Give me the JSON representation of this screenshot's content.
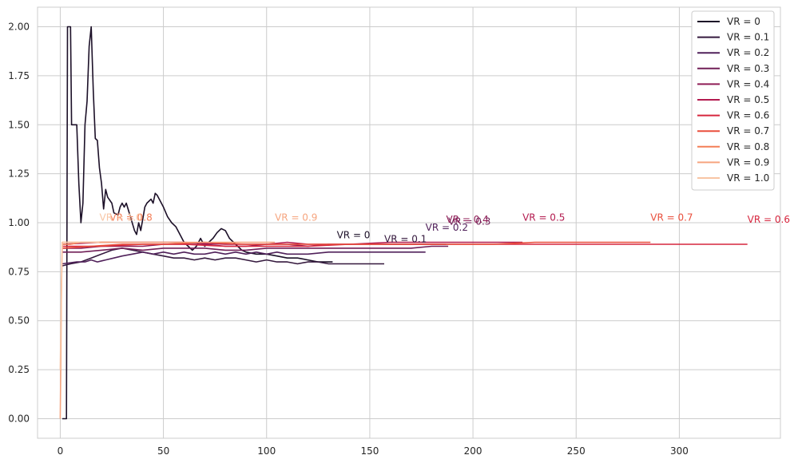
{
  "chart_data": {
    "type": "line",
    "title": "",
    "xlabel": "",
    "ylabel": "",
    "xlim": [
      -11,
      349
    ],
    "ylim": [
      -0.1,
      2.1
    ],
    "grid": true,
    "legend_position": "top-right",
    "x_ticks": [
      0,
      50,
      100,
      150,
      200,
      250,
      300
    ],
    "x_tick_labels": [
      "0",
      "50",
      "100",
      "150",
      "200",
      "250",
      "300"
    ],
    "y_ticks": [
      0.0,
      0.25,
      0.5,
      0.75,
      1.0,
      1.25,
      1.5,
      1.75,
      2.0
    ],
    "y_tick_labels": [
      "0.00",
      "0.25",
      "0.50",
      "0.75",
      "1.00",
      "1.25",
      "1.50",
      "1.75",
      "2.00"
    ],
    "series": [
      {
        "name": "VR = 0",
        "color": "#1c1028",
        "end_label": "VR = 0",
        "end_label_pos": [
          134,
          0.92
        ],
        "points": [
          [
            1,
            0
          ],
          [
            3,
            0
          ],
          [
            3.5,
            2
          ],
          [
            5,
            2
          ],
          [
            5.5,
            1.5
          ],
          [
            8,
            1.5
          ],
          [
            9,
            1.2
          ],
          [
            10,
            1.0
          ],
          [
            11,
            1.1
          ],
          [
            12,
            1.5
          ],
          [
            13,
            1.62
          ],
          [
            14,
            1.9
          ],
          [
            15,
            2.0
          ],
          [
            16,
            1.67
          ],
          [
            17,
            1.43
          ],
          [
            18,
            1.42
          ],
          [
            19,
            1.28
          ],
          [
            20,
            1.2
          ],
          [
            21,
            1.07
          ],
          [
            22,
            1.17
          ],
          [
            23,
            1.13
          ],
          [
            25,
            1.1
          ],
          [
            26,
            1.05
          ],
          [
            28,
            1.04
          ],
          [
            29,
            1.08
          ],
          [
            30,
            1.1
          ],
          [
            31,
            1.08
          ],
          [
            32,
            1.1
          ],
          [
            34,
            1.03
          ],
          [
            36,
            0.96
          ],
          [
            37,
            0.94
          ],
          [
            38,
            1.0
          ],
          [
            39,
            0.96
          ],
          [
            40,
            1.02
          ],
          [
            41,
            1.08
          ],
          [
            42,
            1.1
          ],
          [
            44,
            1.12
          ],
          [
            45,
            1.1
          ],
          [
            46,
            1.15
          ],
          [
            47,
            1.14
          ],
          [
            48,
            1.12
          ],
          [
            50,
            1.08
          ],
          [
            52,
            1.03
          ],
          [
            54,
            1.0
          ],
          [
            56,
            0.98
          ],
          [
            58,
            0.94
          ],
          [
            60,
            0.9
          ],
          [
            62,
            0.88
          ],
          [
            64,
            0.86
          ],
          [
            66,
            0.88
          ],
          [
            68,
            0.92
          ],
          [
            70,
            0.88
          ],
          [
            72,
            0.9
          ],
          [
            74,
            0.92
          ],
          [
            76,
            0.95
          ],
          [
            78,
            0.97
          ],
          [
            80,
            0.96
          ],
          [
            82,
            0.92
          ],
          [
            84,
            0.9
          ],
          [
            86,
            0.88
          ],
          [
            88,
            0.86
          ],
          [
            90,
            0.85
          ],
          [
            95,
            0.84
          ],
          [
            100,
            0.84
          ],
          [
            105,
            0.83
          ],
          [
            110,
            0.82
          ],
          [
            115,
            0.82
          ],
          [
            120,
            0.81
          ],
          [
            125,
            0.8
          ],
          [
            132,
            0.8
          ]
        ]
      },
      {
        "name": "VR = 0.1",
        "color": "#35193e",
        "end_label": "VR = 0.1",
        "end_label_pos": [
          157,
          0.9
        ],
        "points": [
          [
            1,
            0.78
          ],
          [
            5,
            0.79
          ],
          [
            10,
            0.8
          ],
          [
            15,
            0.82
          ],
          [
            20,
            0.84
          ],
          [
            25,
            0.86
          ],
          [
            30,
            0.87
          ],
          [
            35,
            0.86
          ],
          [
            40,
            0.85
          ],
          [
            45,
            0.84
          ],
          [
            50,
            0.83
          ],
          [
            55,
            0.82
          ],
          [
            60,
            0.82
          ],
          [
            65,
            0.81
          ],
          [
            70,
            0.82
          ],
          [
            75,
            0.81
          ],
          [
            80,
            0.82
          ],
          [
            85,
            0.82
          ],
          [
            90,
            0.81
          ],
          [
            95,
            0.8
          ],
          [
            100,
            0.81
          ],
          [
            105,
            0.8
          ],
          [
            110,
            0.8
          ],
          [
            115,
            0.79
          ],
          [
            120,
            0.8
          ],
          [
            125,
            0.8
          ],
          [
            130,
            0.79
          ],
          [
            140,
            0.79
          ],
          [
            150,
            0.79
          ],
          [
            157,
            0.79
          ]
        ]
      },
      {
        "name": "VR = 0.2",
        "color": "#50215a",
        "end_label": "VR = 0.2",
        "end_label_pos": [
          177,
          0.96
        ],
        "points": [
          [
            1,
            0.79
          ],
          [
            8,
            0.8
          ],
          [
            12,
            0.8
          ],
          [
            15,
            0.81
          ],
          [
            18,
            0.8
          ],
          [
            22,
            0.81
          ],
          [
            26,
            0.82
          ],
          [
            30,
            0.83
          ],
          [
            35,
            0.84
          ],
          [
            40,
            0.85
          ],
          [
            45,
            0.84
          ],
          [
            50,
            0.85
          ],
          [
            55,
            0.84
          ],
          [
            60,
            0.85
          ],
          [
            65,
            0.84
          ],
          [
            70,
            0.84
          ],
          [
            75,
            0.85
          ],
          [
            80,
            0.84
          ],
          [
            85,
            0.85
          ],
          [
            90,
            0.84
          ],
          [
            95,
            0.85
          ],
          [
            100,
            0.84
          ],
          [
            105,
            0.85
          ],
          [
            110,
            0.84
          ],
          [
            115,
            0.84
          ],
          [
            120,
            0.84
          ],
          [
            130,
            0.85
          ],
          [
            140,
            0.85
          ],
          [
            150,
            0.85
          ],
          [
            160,
            0.85
          ],
          [
            170,
            0.85
          ],
          [
            177,
            0.85
          ]
        ]
      },
      {
        "name": "VR = 0.3",
        "color": "#701f57",
        "end_label": "VR = 0.3",
        "end_label_pos": [
          188,
          0.99
        ],
        "points": [
          [
            1,
            0.85
          ],
          [
            10,
            0.85
          ],
          [
            20,
            0.86
          ],
          [
            30,
            0.87
          ],
          [
            40,
            0.86
          ],
          [
            50,
            0.87
          ],
          [
            60,
            0.87
          ],
          [
            70,
            0.87
          ],
          [
            80,
            0.86
          ],
          [
            90,
            0.86
          ],
          [
            100,
            0.87
          ],
          [
            110,
            0.87
          ],
          [
            120,
            0.87
          ],
          [
            130,
            0.87
          ],
          [
            140,
            0.87
          ],
          [
            150,
            0.87
          ],
          [
            160,
            0.87
          ],
          [
            170,
            0.87
          ],
          [
            180,
            0.88
          ],
          [
            188,
            0.88
          ]
        ]
      },
      {
        "name": "VR = 0.4",
        "color": "#8f1d56",
        "end_label": "VR = 0.4",
        "end_label_pos": [
          187,
          1.0
        ],
        "points": [
          [
            1,
            0.87
          ],
          [
            10,
            0.87
          ],
          [
            20,
            0.88
          ],
          [
            30,
            0.88
          ],
          [
            40,
            0.88
          ],
          [
            50,
            0.89
          ],
          [
            60,
            0.89
          ],
          [
            70,
            0.89
          ],
          [
            80,
            0.88
          ],
          [
            90,
            0.88
          ],
          [
            100,
            0.89
          ],
          [
            110,
            0.89
          ],
          [
            120,
            0.88
          ],
          [
            130,
            0.89
          ],
          [
            140,
            0.89
          ],
          [
            150,
            0.89
          ],
          [
            160,
            0.89
          ],
          [
            170,
            0.89
          ],
          [
            180,
            0.89
          ],
          [
            187,
            0.89
          ]
        ]
      },
      {
        "name": "VR = 0.5",
        "color": "#b31b4f",
        "end_label": "VR = 0.5",
        "end_label_pos": [
          224,
          1.01
        ],
        "points": [
          [
            1,
            0.89
          ],
          [
            20,
            0.9
          ],
          [
            40,
            0.9
          ],
          [
            60,
            0.9
          ],
          [
            80,
            0.89
          ],
          [
            100,
            0.89
          ],
          [
            110,
            0.9
          ],
          [
            120,
            0.89
          ],
          [
            140,
            0.89
          ],
          [
            160,
            0.9
          ],
          [
            180,
            0.9
          ],
          [
            200,
            0.9
          ],
          [
            210,
            0.9
          ],
          [
            224,
            0.9
          ]
        ]
      },
      {
        "name": "VR = 0.6",
        "color": "#d6263e",
        "end_label": "VR = 0.6",
        "end_label_pos": [
          333,
          1.0
        ],
        "points": [
          [
            1,
            0.88
          ],
          [
            20,
            0.88
          ],
          [
            40,
            0.89
          ],
          [
            60,
            0.89
          ],
          [
            80,
            0.88
          ],
          [
            100,
            0.88
          ],
          [
            120,
            0.88
          ],
          [
            140,
            0.89
          ],
          [
            160,
            0.89
          ],
          [
            180,
            0.89
          ],
          [
            200,
            0.89
          ],
          [
            220,
            0.89
          ],
          [
            250,
            0.89
          ],
          [
            280,
            0.89
          ],
          [
            310,
            0.89
          ],
          [
            333,
            0.89
          ]
        ]
      },
      {
        "name": "VR = 0.7",
        "color": "#e94f3c",
        "end_label": "VR = 0.7",
        "end_label_pos": [
          286,
          1.01
        ],
        "points": [
          [
            1,
            0.87
          ],
          [
            15,
            0.88
          ],
          [
            30,
            0.89
          ],
          [
            50,
            0.89
          ],
          [
            70,
            0.9
          ],
          [
            90,
            0.89
          ],
          [
            110,
            0.89
          ],
          [
            130,
            0.89
          ],
          [
            150,
            0.89
          ],
          [
            170,
            0.89
          ],
          [
            190,
            0.89
          ],
          [
            210,
            0.89
          ],
          [
            230,
            0.9
          ],
          [
            250,
            0.9
          ],
          [
            270,
            0.9
          ],
          [
            286,
            0.9
          ]
        ]
      },
      {
        "name": "VR = 0.8",
        "color": "#f47e57",
        "end_label": "VR = 0.8",
        "end_label_pos": [
          24,
          1.01
        ],
        "points": [
          [
            1,
            0.89
          ],
          [
            5,
            0.89
          ],
          [
            10,
            0.9
          ],
          [
            15,
            0.9
          ],
          [
            20,
            0.9
          ],
          [
            24,
            0.9
          ]
        ]
      },
      {
        "name": "VR = 0.9",
        "color": "#f6a57f",
        "end_label": "VR = 0.9",
        "end_label_pos": [
          104,
          1.01
        ],
        "points": [
          [
            0,
            0
          ],
          [
            0.3,
            0.3
          ],
          [
            0.6,
            0.7
          ],
          [
            1,
            0.9
          ],
          [
            10,
            0.9
          ],
          [
            20,
            0.9
          ],
          [
            30,
            0.9
          ],
          [
            40,
            0.9
          ],
          [
            50,
            0.9
          ],
          [
            60,
            0.9
          ],
          [
            70,
            0.9
          ],
          [
            80,
            0.9
          ],
          [
            90,
            0.9
          ],
          [
            104,
            0.9
          ]
        ]
      },
      {
        "name": "VR = 1.0",
        "color": "#f8c5a4",
        "end_label": "VR = 1.0",
        "end_label_pos": [
          19,
          1.01
        ],
        "points": [
          [
            0,
            0.25
          ],
          [
            0.5,
            0.6
          ],
          [
            1,
            0.9
          ],
          [
            5,
            0.9
          ],
          [
            10,
            0.9
          ],
          [
            15,
            0.9
          ],
          [
            19,
            0.9
          ]
        ]
      }
    ]
  }
}
